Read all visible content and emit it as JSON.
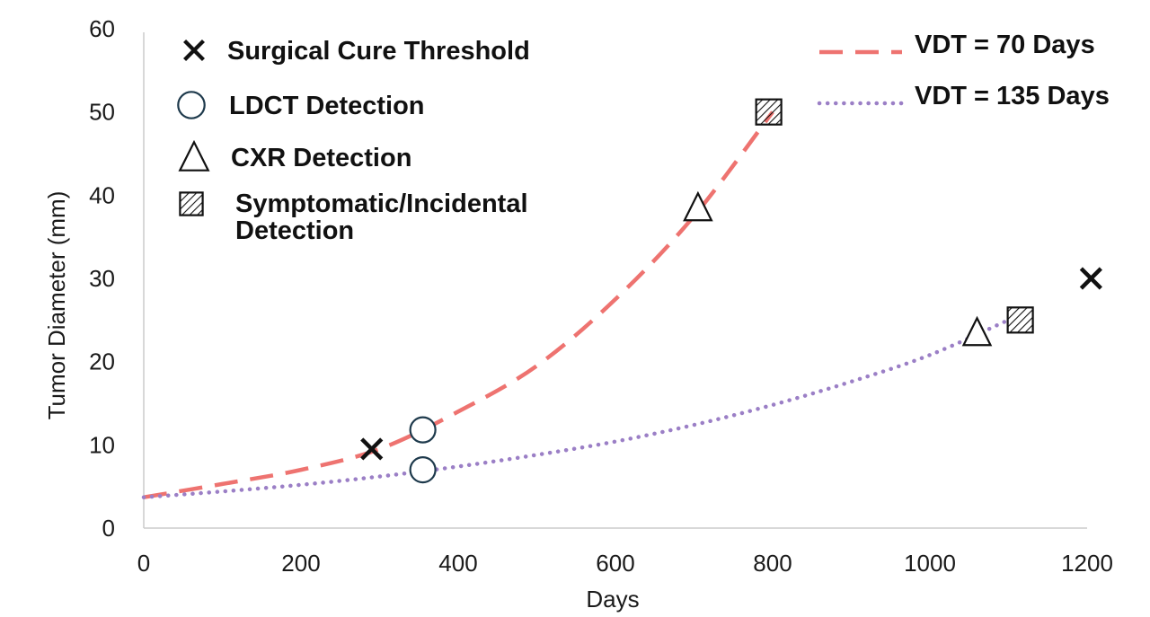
{
  "chart_data": {
    "type": "line",
    "xlabel": "Days",
    "ylabel": "Tumor Diameter  (mm)",
    "xlim": [
      0,
      1200
    ],
    "ylim": [
      0,
      60
    ],
    "x_ticks": [
      0,
      200,
      400,
      600,
      800,
      1000,
      1200
    ],
    "y_ticks": [
      0,
      10,
      20,
      30,
      40,
      50,
      60
    ],
    "grid": false,
    "series": [
      {
        "name": "VDT = 70 Days",
        "style": "dashed",
        "color": "#ee7370",
        "x": [
          0,
          100,
          200,
          300,
          400,
          500,
          600,
          700,
          800
        ],
        "y": [
          3.7,
          5.3,
          7.0,
          9.5,
          14.0,
          19.5,
          27.5,
          37.5,
          50.0
        ]
      },
      {
        "name": "VDT = 135 Days",
        "style": "dotted",
        "color": "#9b7fc6",
        "x": [
          0,
          100,
          200,
          300,
          400,
          500,
          600,
          700,
          800,
          900,
          1000,
          1100
        ],
        "y": [
          3.7,
          4.4,
          5.2,
          6.2,
          7.4,
          8.8,
          10.4,
          12.4,
          14.8,
          17.6,
          20.8,
          25.0
        ]
      }
    ],
    "markers": [
      {
        "series": "VDT = 70 Days",
        "type": "cross",
        "x": 290,
        "y": 9.5
      },
      {
        "series": "VDT = 70 Days",
        "type": "circle",
        "x": 355,
        "y": 11.8
      },
      {
        "series": "VDT = 70 Days",
        "type": "triangle",
        "x": 705,
        "y": 38.5
      },
      {
        "series": "VDT = 70 Days",
        "type": "hatched-square",
        "x": 795,
        "y": 50.0
      },
      {
        "series": "VDT = 135 Days",
        "type": "circle",
        "x": 355,
        "y": 7.0
      },
      {
        "series": "VDT = 135 Days",
        "type": "triangle",
        "x": 1060,
        "y": 23.5
      },
      {
        "series": "VDT = 135 Days",
        "type": "hatched-square",
        "x": 1115,
        "y": 25.0
      },
      {
        "series": "VDT = 135 Days",
        "type": "cross",
        "x": 1205,
        "y": 30.0
      }
    ],
    "marker_legend": [
      {
        "type": "cross",
        "lines": [
          "Surgical Cure Threshold"
        ]
      },
      {
        "type": "circle",
        "lines": [
          "LDCT Detection"
        ]
      },
      {
        "type": "triangle",
        "lines": [
          "CXR Detection"
        ]
      },
      {
        "type": "hatched-square",
        "lines": [
          "Symptomatic/Incidental",
          "Detection"
        ]
      }
    ],
    "series_legend": [
      {
        "label": "VDT = 70 Days",
        "style": "dashed",
        "color": "#ee7370"
      },
      {
        "label": "VDT = 135 Days",
        "style": "dotted",
        "color": "#9b7fc6"
      }
    ],
    "colors": {
      "axis": "#cccccc",
      "marker": "#111111",
      "circle_marker": "#1e3a4c"
    }
  }
}
